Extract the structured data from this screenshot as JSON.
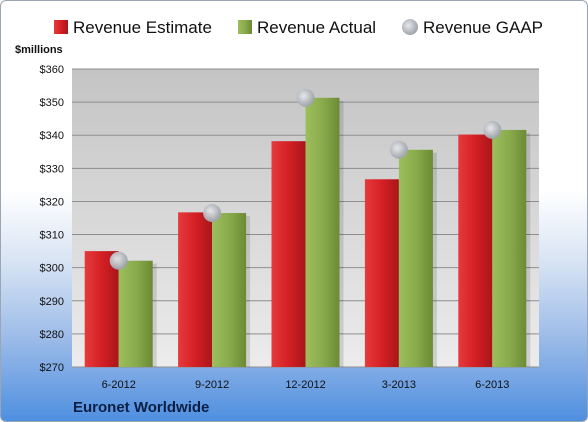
{
  "chart_data": {
    "type": "bar",
    "unit_label": "$millions",
    "company": "Euronet Worldwide",
    "categories": [
      "6-2012",
      "9-2012",
      "12-2012",
      "3-2013",
      "6-2013"
    ],
    "series": [
      {
        "name": "Revenue Estimate",
        "kind": "bar",
        "color": "#d42024",
        "values": [
          305,
          316.7,
          338.2,
          326.7,
          340.2
        ]
      },
      {
        "name": "Revenue Actual",
        "kind": "bar",
        "color": "#8aab4c",
        "values": [
          302.1,
          316.5,
          351.3,
          335.6,
          341.6
        ]
      },
      {
        "name": "Revenue GAAP",
        "kind": "marker",
        "color": "#b4b9c2",
        "values": [
          302.1,
          316.5,
          351.3,
          335.6,
          341.6
        ]
      }
    ],
    "ylim": [
      270,
      360
    ],
    "yticks": [
      "$270",
      "$280",
      "$290",
      "$300",
      "$310",
      "$320",
      "$330",
      "$340",
      "$350",
      "$360"
    ],
    "grid": true,
    "legend_position": "top"
  }
}
